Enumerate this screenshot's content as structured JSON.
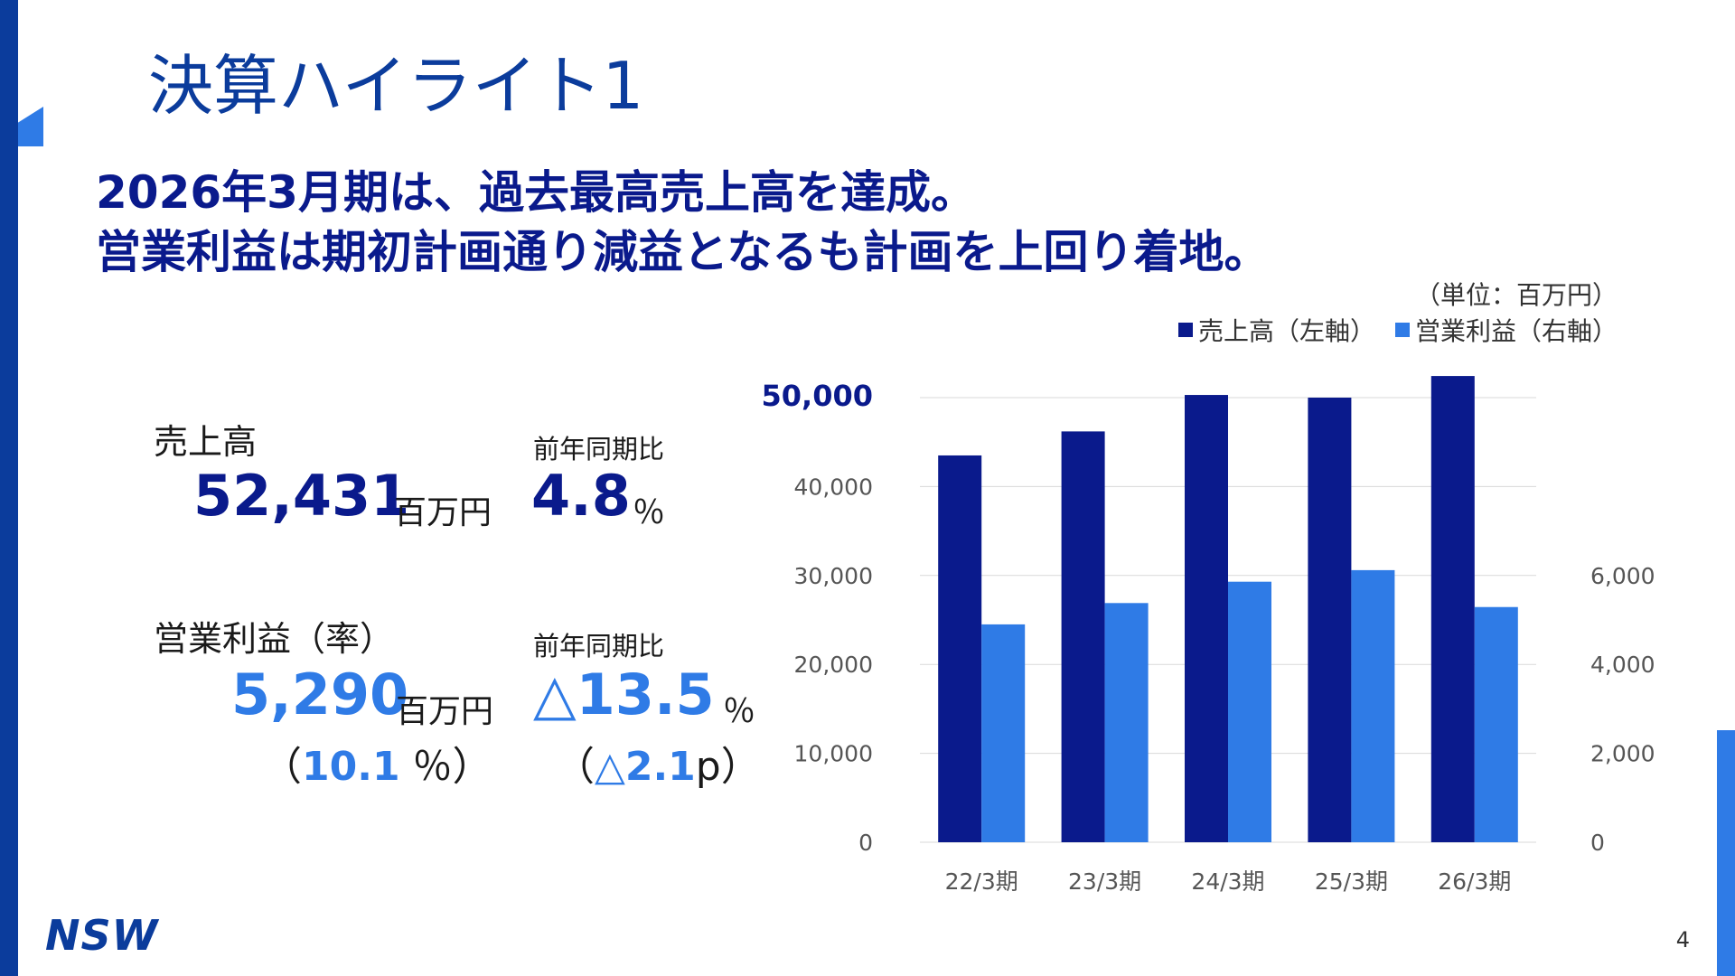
{
  "title": "決算ハイライト1",
  "headline": {
    "line1": "2026年3月期は、過去最高売上高を達成。",
    "line2": "営業利益は期初計画通り減益となるも計画を上回り着地。"
  },
  "sales": {
    "label": "売上高",
    "value": "52,431",
    "unit": "百万円",
    "yoy_label": "前年同期比",
    "yoy_value": "4.8",
    "yoy_unit": "％"
  },
  "op_profit": {
    "label": "営業利益（率）",
    "value": "5,290",
    "unit": "百万円",
    "rate_open": "（",
    "rate_value": "10.1",
    "rate_close": " ％）",
    "yoy_label": "前年同期比",
    "yoy_value": "△13.5",
    "yoy_unit": "％",
    "diff_open": "（",
    "diff_value": "△2.1",
    "diff_close": "p）"
  },
  "unit_note": "（単位：百万円）",
  "logo": "NSW",
  "page_number": "4",
  "colors": {
    "navy": "#0a1a8c",
    "blue": "#2f7be6",
    "stripe": "#0b3c9c"
  },
  "chart_data": {
    "type": "bar",
    "categories": [
      "22/3期",
      "23/3期",
      "24/3期",
      "25/3期",
      "26/3期"
    ],
    "series": [
      {
        "name": "売上高（左軸）",
        "axis": "left",
        "color": "#0a1a8c",
        "values": [
          43500,
          46200,
          50300,
          50000,
          52431
        ]
      },
      {
        "name": "営業利益（右軸）",
        "axis": "right",
        "color": "#2f7be6",
        "values": [
          4900,
          5380,
          5860,
          6120,
          5290
        ]
      }
    ],
    "y_left": {
      "min": 0,
      "max": 50000,
      "ticks": [
        "0",
        "10,000",
        "20,000",
        "30,000",
        "40,000",
        "50,000"
      ]
    },
    "y_right": {
      "min": 0,
      "max": 10000,
      "ticks": [
        "0",
        "2,000",
        "4,000",
        "6,000"
      ]
    },
    "grid": true,
    "legend": "top-right"
  }
}
